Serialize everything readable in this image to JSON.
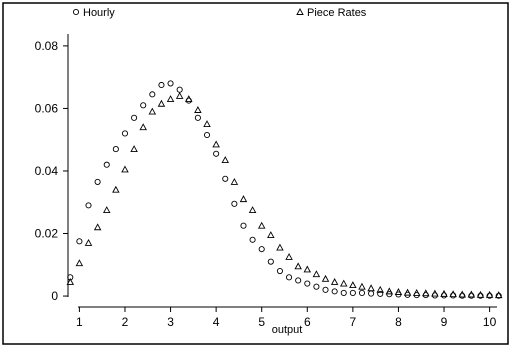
{
  "chart_data": {
    "type": "scatter",
    "title": "",
    "xlabel": "output",
    "ylabel": "",
    "xlim": [
      0.75,
      10.25
    ],
    "ylim": [
      -0.0035,
      0.087
    ],
    "x_ticks": [
      1,
      2,
      3,
      4,
      5,
      6,
      7,
      8,
      9,
      10
    ],
    "x_tick_labels": [
      "1",
      "2",
      "3",
      "4",
      "5",
      "6",
      "7",
      "8",
      "9",
      "10"
    ],
    "y_ticks": [
      0,
      0.02,
      0.04,
      0.06,
      0.08
    ],
    "y_tick_labels": [
      "0",
      "0.02",
      "0.04",
      "0.06",
      "0.08"
    ],
    "grid": false,
    "legend": "top",
    "series": [
      {
        "name": "Hourly",
        "marker": "circle",
        "x": [
          0.8,
          1.0,
          1.2,
          1.4,
          1.6,
          1.8,
          2.0,
          2.2,
          2.4,
          2.6,
          2.8,
          3.0,
          3.2,
          3.4,
          3.6,
          3.8,
          4.0,
          4.2,
          4.4,
          4.6,
          4.8,
          5.0,
          5.2,
          5.4,
          5.6,
          5.8,
          6.0,
          6.2,
          6.4,
          6.6,
          6.8,
          7.0,
          7.2,
          7.4,
          7.6,
          7.8,
          8.0,
          8.2,
          8.4,
          8.6,
          8.8,
          9.0,
          9.2,
          9.4,
          9.6,
          9.8,
          10.0,
          10.2
        ],
        "y": [
          0.006,
          0.0175,
          0.029,
          0.0365,
          0.042,
          0.047,
          0.052,
          0.057,
          0.061,
          0.0645,
          0.0675,
          0.068,
          0.066,
          0.0625,
          0.057,
          0.0515,
          0.0455,
          0.0375,
          0.0295,
          0.0225,
          0.018,
          0.015,
          0.011,
          0.008,
          0.006,
          0.005,
          0.004,
          0.003,
          0.002,
          0.0015,
          0.001,
          0.001,
          0.001,
          0.0008,
          0.0007,
          0.0006,
          0.0005,
          0.0004,
          0.0003,
          0.0003,
          0.0002,
          0.0002,
          0.0002,
          0.0001,
          0.0001,
          0.0001,
          0.0001,
          0.0001
        ]
      },
      {
        "name": "Piece Rates",
        "marker": "triangle",
        "x": [
          0.8,
          1.0,
          1.2,
          1.4,
          1.6,
          1.8,
          2.0,
          2.2,
          2.4,
          2.6,
          2.8,
          3.0,
          3.2,
          3.4,
          3.6,
          3.8,
          4.0,
          4.2,
          4.4,
          4.6,
          4.8,
          5.0,
          5.2,
          5.4,
          5.6,
          5.8,
          6.0,
          6.2,
          6.4,
          6.6,
          6.8,
          7.0,
          7.2,
          7.4,
          7.6,
          7.8,
          8.0,
          8.2,
          8.4,
          8.6,
          8.8,
          9.0,
          9.2,
          9.4,
          9.6,
          9.8,
          10.0,
          10.2
        ],
        "y": [
          0.0045,
          0.0105,
          0.017,
          0.022,
          0.0275,
          0.034,
          0.0405,
          0.047,
          0.054,
          0.059,
          0.0615,
          0.063,
          0.064,
          0.063,
          0.0595,
          0.055,
          0.0485,
          0.0435,
          0.0365,
          0.031,
          0.0275,
          0.0225,
          0.0195,
          0.0155,
          0.0125,
          0.0095,
          0.0085,
          0.007,
          0.0055,
          0.0045,
          0.004,
          0.0035,
          0.003,
          0.0025,
          0.002,
          0.0015,
          0.0013,
          0.0011,
          0.001,
          0.0009,
          0.0008,
          0.0007,
          0.0006,
          0.0005,
          0.0005,
          0.0004,
          0.0004,
          0.0003
        ]
      }
    ]
  }
}
